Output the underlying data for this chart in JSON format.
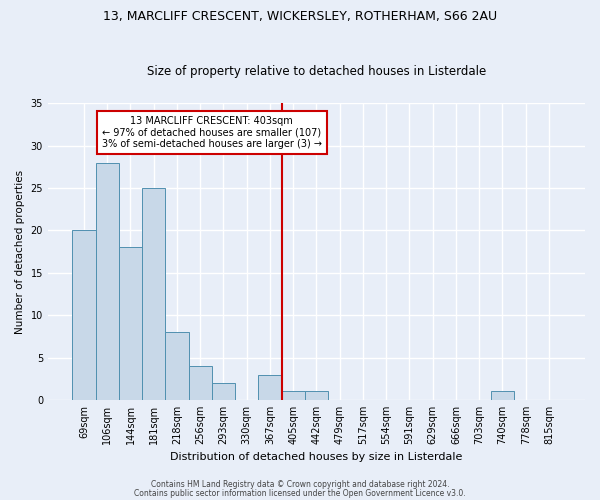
{
  "title1": "13, MARCLIFF CRESCENT, WICKERSLEY, ROTHERHAM, S66 2AU",
  "title2": "Size of property relative to detached houses in Listerdale",
  "xlabel": "Distribution of detached houses by size in Listerdale",
  "ylabel": "Number of detached properties",
  "footnote1": "Contains HM Land Registry data © Crown copyright and database right 2024.",
  "footnote2": "Contains public sector information licensed under the Open Government Licence v3.0.",
  "bar_labels": [
    "69sqm",
    "106sqm",
    "144sqm",
    "181sqm",
    "218sqm",
    "256sqm",
    "293sqm",
    "330sqm",
    "367sqm",
    "405sqm",
    "442sqm",
    "479sqm",
    "517sqm",
    "554sqm",
    "591sqm",
    "629sqm",
    "666sqm",
    "703sqm",
    "740sqm",
    "778sqm",
    "815sqm"
  ],
  "bar_values": [
    20,
    28,
    18,
    25,
    8,
    4,
    2,
    0,
    3,
    1,
    1,
    0,
    0,
    0,
    0,
    0,
    0,
    0,
    1,
    0,
    0
  ],
  "bar_color": "#c8d8e8",
  "bar_edge_color": "#5090b0",
  "bg_color": "#e8eef8",
  "grid_color": "#ffffff",
  "vline_x_index": 9,
  "vline_color": "#cc0000",
  "annotation_text": "13 MARCLIFF CRESCENT: 403sqm\n← 97% of detached houses are smaller (107)\n3% of semi-detached houses are larger (3) →",
  "annotation_box_color": "#cc0000",
  "ylim": [
    0,
    35
  ],
  "yticks": [
    0,
    5,
    10,
    15,
    20,
    25,
    30,
    35
  ],
  "title1_fontsize": 9,
  "title2_fontsize": 8.5,
  "ylabel_fontsize": 7.5,
  "xlabel_fontsize": 8,
  "tick_fontsize": 7,
  "annot_fontsize": 7,
  "footnote_fontsize": 5.5
}
